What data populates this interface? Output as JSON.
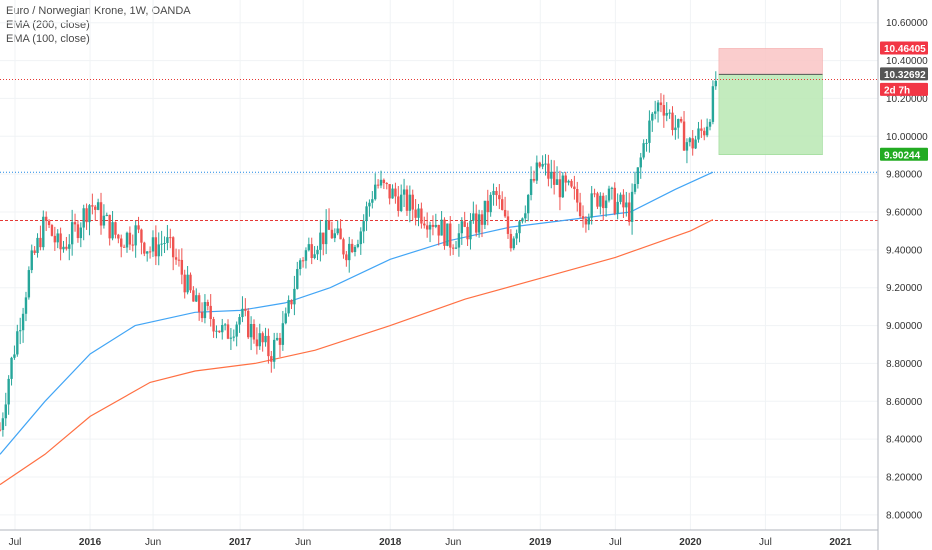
{
  "chart_data": {
    "type": "candlestick",
    "title": "Euro / Norwegian Krone, 1W, OANDA",
    "indicators": [
      "EMA (200, close)",
      "EMA (100, close)"
    ],
    "y_ticks": [
      "10.60000",
      "10.40000",
      "10.20000",
      "10.00000",
      "9.80000",
      "9.60000",
      "9.40000",
      "9.20000",
      "9.00000",
      "8.80000",
      "8.60000",
      "8.40000",
      "8.20000",
      "8.00000"
    ],
    "y_range": [
      7.92,
      10.72
    ],
    "x_range": [
      2015.4,
      2021.25
    ],
    "x_ticks": [
      {
        "label": "Jul",
        "t": 2015.5,
        "major": false
      },
      {
        "label": "2016",
        "t": 2016.0,
        "major": true
      },
      {
        "label": "Jun",
        "t": 2016.42,
        "major": false
      },
      {
        "label": "2017",
        "t": 2017.0,
        "major": true
      },
      {
        "label": "Jun",
        "t": 2017.42,
        "major": false
      },
      {
        "label": "2018",
        "t": 2018.0,
        "major": true
      },
      {
        "label": "Jun",
        "t": 2018.42,
        "major": false
      },
      {
        "label": "2019",
        "t": 2019.0,
        "major": true
      },
      {
        "label": "Jul",
        "t": 2019.5,
        "major": false
      },
      {
        "label": "2020",
        "t": 2020.0,
        "major": true
      },
      {
        "label": "Jul",
        "t": 2020.5,
        "major": false
      },
      {
        "label": "2021",
        "t": 2021.0,
        "major": true
      }
    ],
    "price_path": [
      [
        2015.4,
        8.45
      ],
      [
        2015.45,
        8.7
      ],
      [
        2015.5,
        8.9
      ],
      [
        2015.6,
        9.3
      ],
      [
        2015.7,
        9.55
      ],
      [
        2015.8,
        9.4
      ],
      [
        2015.9,
        9.5
      ],
      [
        2016.0,
        9.65
      ],
      [
        2016.1,
        9.55
      ],
      [
        2016.2,
        9.45
      ],
      [
        2016.3,
        9.5
      ],
      [
        2016.4,
        9.4
      ],
      [
        2016.5,
        9.45
      ],
      [
        2016.6,
        9.3
      ],
      [
        2016.7,
        9.1
      ],
      [
        2016.8,
        9.05
      ],
      [
        2016.9,
        8.95
      ],
      [
        2017.0,
        9.05
      ],
      [
        2017.1,
        8.95
      ],
      [
        2017.2,
        8.85
      ],
      [
        2017.3,
        9.0
      ],
      [
        2017.4,
        9.35
      ],
      [
        2017.5,
        9.45
      ],
      [
        2017.6,
        9.5
      ],
      [
        2017.7,
        9.4
      ],
      [
        2017.8,
        9.5
      ],
      [
        2017.9,
        9.75
      ],
      [
        2018.0,
        9.7
      ],
      [
        2018.1,
        9.65
      ],
      [
        2018.2,
        9.6
      ],
      [
        2018.3,
        9.55
      ],
      [
        2018.4,
        9.45
      ],
      [
        2018.5,
        9.5
      ],
      [
        2018.6,
        9.55
      ],
      [
        2018.7,
        9.7
      ],
      [
        2018.8,
        9.45
      ],
      [
        2018.9,
        9.65
      ],
      [
        2019.0,
        9.85
      ],
      [
        2019.1,
        9.75
      ],
      [
        2019.2,
        9.7
      ],
      [
        2019.3,
        9.6
      ],
      [
        2019.4,
        9.7
      ],
      [
        2019.5,
        9.65
      ],
      [
        2019.6,
        9.6
      ],
      [
        2019.7,
        10.0
      ],
      [
        2019.8,
        10.2
      ],
      [
        2019.9,
        10.05
      ],
      [
        2020.0,
        9.95
      ],
      [
        2020.1,
        10.05
      ],
      [
        2020.15,
        10.2
      ],
      [
        2020.18,
        10.35
      ]
    ],
    "ema100": [
      [
        2015.4,
        8.32
      ],
      [
        2015.7,
        8.6
      ],
      [
        2016.0,
        8.85
      ],
      [
        2016.3,
        9.0
      ],
      [
        2016.7,
        9.07
      ],
      [
        2017.0,
        9.08
      ],
      [
        2017.3,
        9.12
      ],
      [
        2017.6,
        9.2
      ],
      [
        2018.0,
        9.35
      ],
      [
        2018.4,
        9.45
      ],
      [
        2018.8,
        9.52
      ],
      [
        2019.2,
        9.56
      ],
      [
        2019.6,
        9.6
      ],
      [
        2019.9,
        9.72
      ],
      [
        2020.15,
        9.81
      ]
    ],
    "ema200": [
      [
        2015.4,
        8.16
      ],
      [
        2015.7,
        8.32
      ],
      [
        2016.0,
        8.52
      ],
      [
        2016.4,
        8.7
      ],
      [
        2016.7,
        8.76
      ],
      [
        2017.1,
        8.8
      ],
      [
        2017.5,
        8.87
      ],
      [
        2018.0,
        9.0
      ],
      [
        2018.5,
        9.14
      ],
      [
        2019.0,
        9.25
      ],
      [
        2019.5,
        9.36
      ],
      [
        2020.0,
        9.5
      ],
      [
        2020.15,
        9.56
      ]
    ],
    "horizontal_levels": [
      {
        "price": 10.3,
        "color": "#e53935",
        "style": "dotted"
      },
      {
        "price": 9.81,
        "color": "#1e88e5",
        "style": "dotted"
      },
      {
        "price": 9.555,
        "color": "#e53935",
        "style": "dashed"
      }
    ],
    "position": {
      "entry": 10.32692,
      "stop": 10.46405,
      "target": 9.90244,
      "t_start": 2020.19,
      "t_end": 2020.88
    },
    "price_tags": [
      {
        "text": "10.46405",
        "price": 10.46405,
        "color": "#f23645"
      },
      {
        "text": "10.32692",
        "price": 10.32692,
        "color": "#555555"
      },
      {
        "text": "2d 7h",
        "price": 10.245,
        "color": "#f23645"
      },
      {
        "text": "9.90244",
        "price": 9.90244,
        "color": "#22ab22"
      }
    ],
    "colors": {
      "up": "#26a69a",
      "down": "#ef5350",
      "ema100": "#42a5f5",
      "ema200": "#ff7043",
      "profit": "#b9e7b3",
      "loss": "#f9c4c4"
    }
  }
}
